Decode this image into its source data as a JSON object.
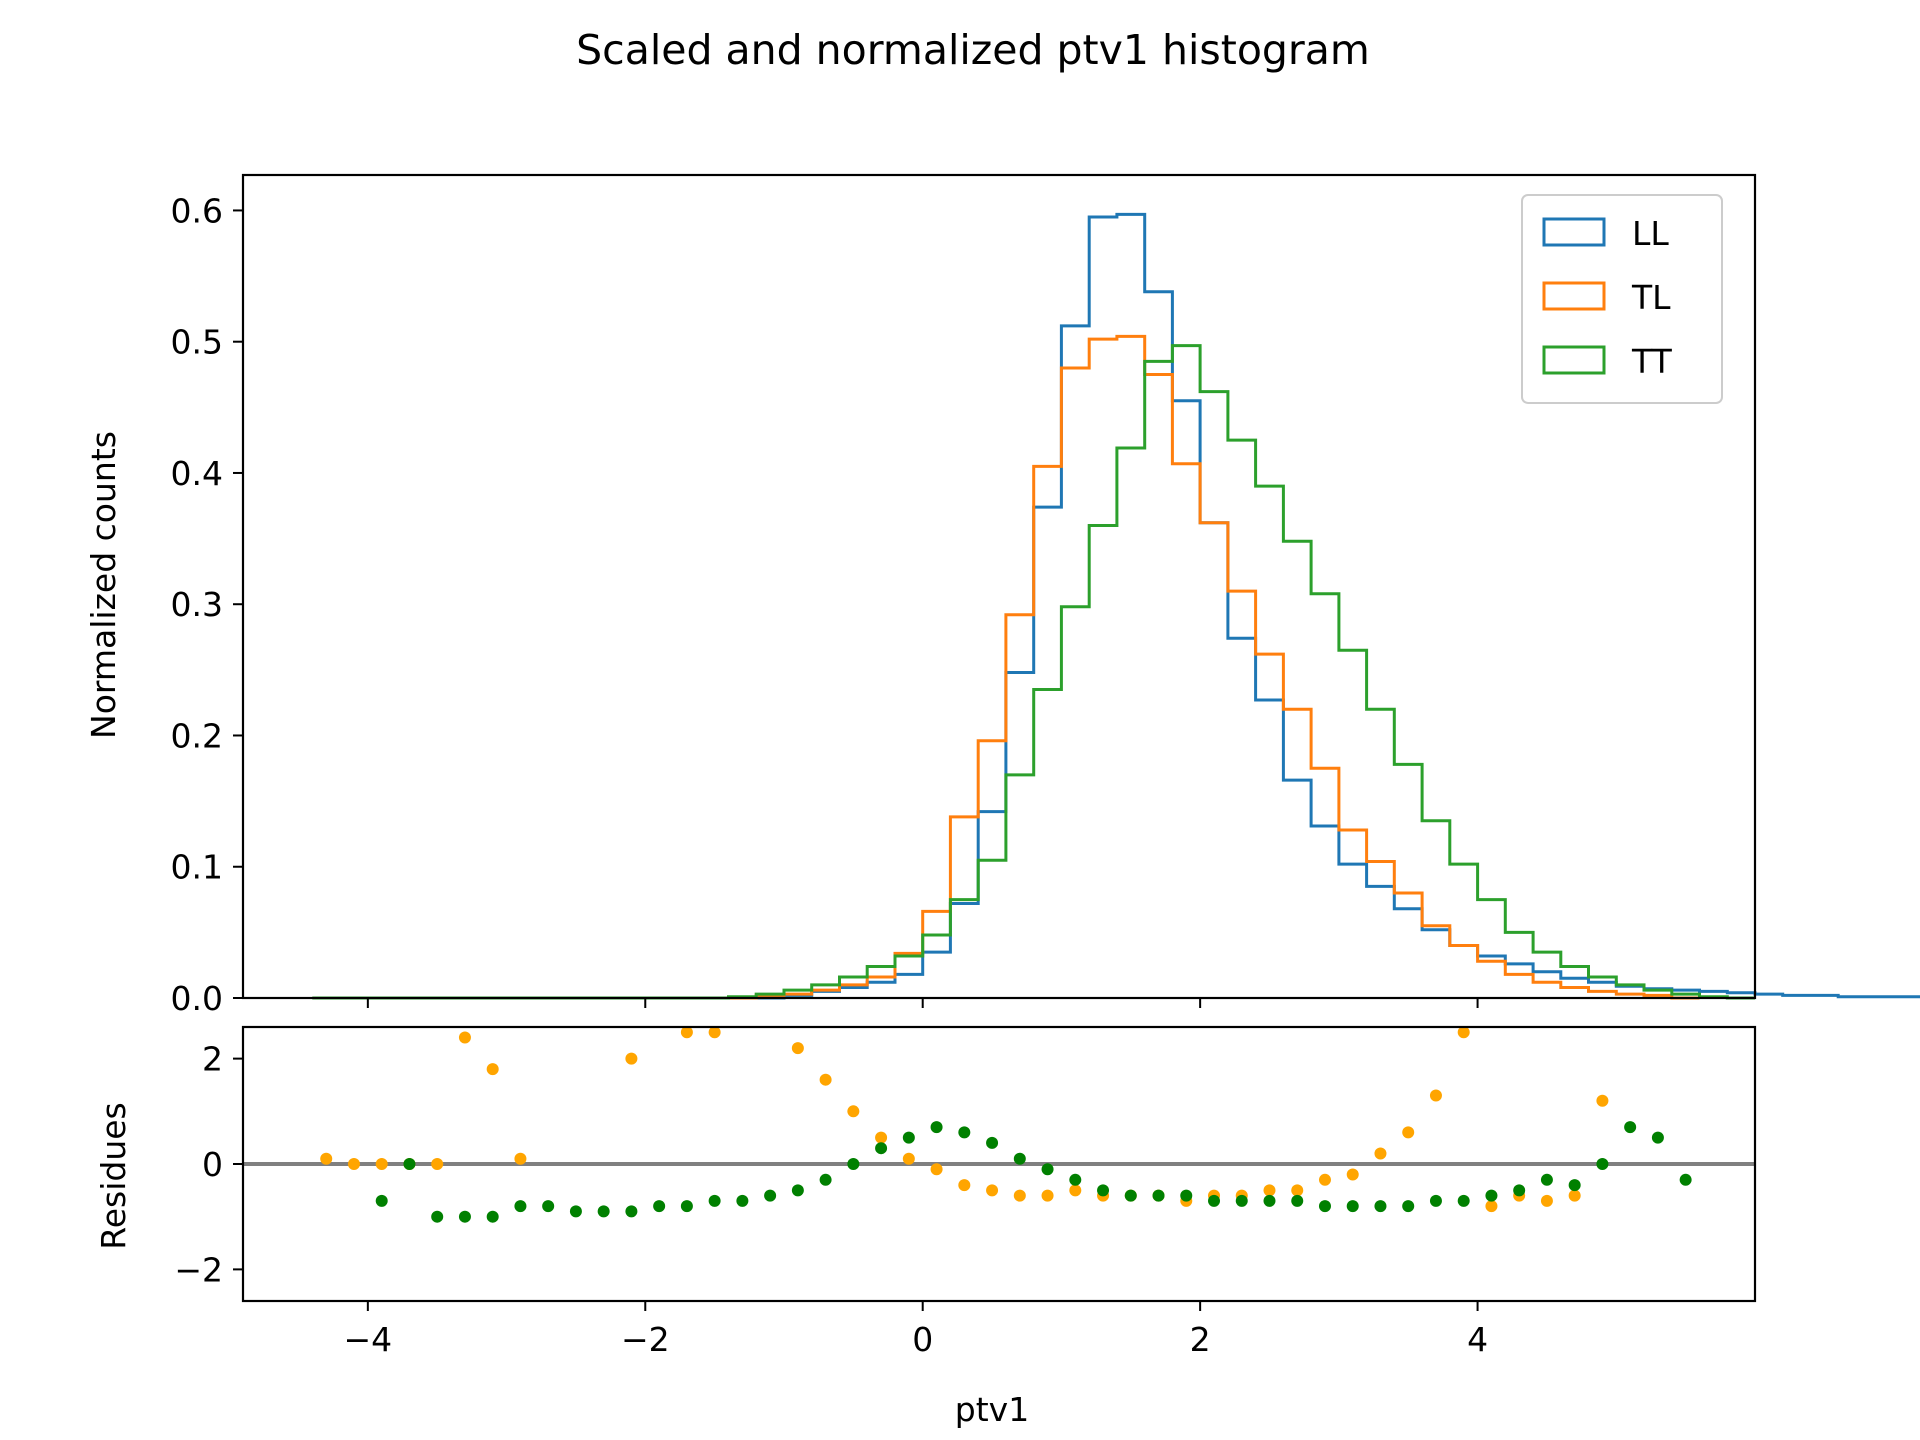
{
  "chart_data": [
    {
      "type": "histogram",
      "title": "Scaled and normalized ptv1 histogram",
      "xlabel": "",
      "ylabel": "Normalized counts",
      "xlim": [
        -4.9,
        6.0
      ],
      "ylim": [
        0.0,
        0.627
      ],
      "xticks": [
        -4,
        -2,
        0,
        2,
        4
      ],
      "yticks": [
        0.0,
        0.1,
        0.2,
        0.3,
        0.4,
        0.5,
        0.6
      ],
      "xtick_labels": [
        "",
        "",
        "",
        "",
        ""
      ],
      "ytick_labels": [
        "0.0",
        "0.1",
        "0.2",
        "0.3",
        "0.4",
        "0.5",
        "0.6"
      ],
      "grid": false,
      "legend": "top-right",
      "series": [
        {
          "name": "LL",
          "color": "#1f77b4",
          "x0": -4.4,
          "bin_width": 0.2,
          "values": [
            0.0,
            0.0,
            0.0,
            0.0,
            0.0,
            0.0,
            0.0,
            0.0,
            0.0,
            0.0,
            0.0,
            0.0,
            0.0,
            0.0,
            0.0,
            0.0,
            0.0,
            0.002,
            0.005,
            0.008,
            0.012,
            0.018,
            0.035,
            0.072,
            0.142,
            0.248,
            0.374,
            0.512,
            0.595,
            0.597,
            0.538,
            0.455,
            0.362,
            0.274,
            0.227,
            0.166,
            0.131,
            0.102,
            0.085,
            0.068,
            0.052,
            0.04,
            0.032,
            0.026,
            0.02,
            0.015,
            0.012,
            0.009,
            0.007,
            0.006,
            0.005,
            0.004,
            0.003,
            0.002,
            0.002,
            0.001,
            0.001,
            0.001,
            0.0
          ]
        },
        {
          "name": "TL",
          "color": "#ff7f0e",
          "x0": -4.4,
          "bin_width": 0.2,
          "values": [
            0.0,
            0.0,
            0.0,
            0.0,
            0.0,
            0.0,
            0.0,
            0.0,
            0.0,
            0.0,
            0.0,
            0.0,
            0.0,
            0.0,
            0.0,
            0.0,
            0.002,
            0.003,
            0.006,
            0.01,
            0.016,
            0.034,
            0.066,
            0.138,
            0.196,
            0.292,
            0.405,
            0.48,
            0.502,
            0.504,
            0.475,
            0.407,
            0.362,
            0.31,
            0.262,
            0.22,
            0.175,
            0.128,
            0.104,
            0.08,
            0.055,
            0.04,
            0.028,
            0.018,
            0.012,
            0.008,
            0.005,
            0.003,
            0.002,
            0.0
          ]
        },
        {
          "name": "TT",
          "color": "#2ca02c",
          "x0": -4.4,
          "bin_width": 0.2,
          "values": [
            0.0,
            0.0,
            0.0,
            0.0,
            0.0,
            0.0,
            0.0,
            0.0,
            0.0,
            0.0,
            0.0,
            0.0,
            0.0,
            0.0,
            0.0,
            0.001,
            0.003,
            0.006,
            0.01,
            0.016,
            0.024,
            0.032,
            0.048,
            0.075,
            0.105,
            0.17,
            0.235,
            0.298,
            0.36,
            0.419,
            0.485,
            0.497,
            0.462,
            0.425,
            0.39,
            0.348,
            0.308,
            0.265,
            0.22,
            0.178,
            0.135,
            0.102,
            0.075,
            0.05,
            0.035,
            0.024,
            0.016,
            0.01,
            0.006,
            0.003,
            0.001,
            0.0
          ]
        }
      ]
    },
    {
      "type": "scatter",
      "title": "",
      "xlabel": "ptv1",
      "ylabel": "Residues",
      "xlim": [
        -4.9,
        6.0
      ],
      "ylim": [
        -2.6,
        2.6
      ],
      "xticks": [
        -4,
        -2,
        0,
        2,
        4
      ],
      "yticks": [
        -2,
        0,
        2
      ],
      "xtick_labels": [
        "−4",
        "−2",
        "0",
        "2",
        "4"
      ],
      "ytick_labels": [
        "−2",
        "0",
        "2"
      ],
      "zero_line": 0,
      "series": [
        {
          "color": "#ffa500",
          "x": [
            -4.3,
            -4.1,
            -3.9,
            -3.7,
            -3.5,
            -3.3,
            -3.1,
            -2.9,
            -2.1,
            -1.7,
            -1.5,
            -0.9,
            -0.7,
            -0.5,
            -0.3,
            -0.1,
            0.1,
            0.3,
            0.5,
            0.7,
            0.9,
            1.1,
            1.3,
            1.5,
            1.7,
            1.9,
            2.1,
            2.3,
            2.5,
            2.7,
            2.9,
            3.1,
            3.3,
            3.5,
            3.7,
            3.9,
            4.1,
            4.3,
            4.5,
            4.7,
            4.9
          ],
          "y": [
            0.1,
            0.0,
            0.0,
            0.0,
            0.0,
            2.4,
            1.8,
            0.1,
            2.0,
            2.5,
            2.5,
            2.2,
            1.6,
            1.0,
            0.5,
            0.1,
            -0.1,
            -0.4,
            -0.5,
            -0.6,
            -0.6,
            -0.5,
            -0.6,
            -0.6,
            -0.6,
            -0.7,
            -0.6,
            -0.6,
            -0.5,
            -0.5,
            -0.3,
            -0.2,
            0.2,
            0.6,
            1.3,
            2.5,
            -0.8,
            -0.6,
            -0.7,
            -0.6,
            1.2
          ]
        },
        {
          "color": "#008000",
          "x": [
            -3.9,
            -3.7,
            -3.5,
            -3.3,
            -3.1,
            -2.9,
            -2.7,
            -2.5,
            -2.3,
            -2.1,
            -1.9,
            -1.7,
            -1.5,
            -1.3,
            -1.1,
            -0.9,
            -0.7,
            -0.5,
            -0.3,
            -0.1,
            0.1,
            0.3,
            0.5,
            0.7,
            0.9,
            1.1,
            1.3,
            1.5,
            1.7,
            1.9,
            2.1,
            2.3,
            2.5,
            2.7,
            2.9,
            3.1,
            3.3,
            3.5,
            3.7,
            3.9,
            4.1,
            4.3,
            4.5,
            4.7,
            4.9,
            5.1,
            5.3,
            5.5
          ],
          "y": [
            -0.7,
            0.0,
            -1.0,
            -1.0,
            -1.0,
            -0.8,
            -0.8,
            -0.9,
            -0.9,
            -0.9,
            -0.8,
            -0.8,
            -0.7,
            -0.7,
            -0.6,
            -0.5,
            -0.3,
            0.0,
            0.3,
            0.5,
            0.7,
            0.6,
            0.4,
            0.1,
            -0.1,
            -0.3,
            -0.5,
            -0.6,
            -0.6,
            -0.6,
            -0.7,
            -0.7,
            -0.7,
            -0.7,
            -0.8,
            -0.8,
            -0.8,
            -0.8,
            -0.7,
            -0.7,
            -0.6,
            -0.5,
            -0.3,
            -0.4,
            0.0,
            0.7,
            0.5,
            -0.3
          ]
        }
      ]
    }
  ]
}
